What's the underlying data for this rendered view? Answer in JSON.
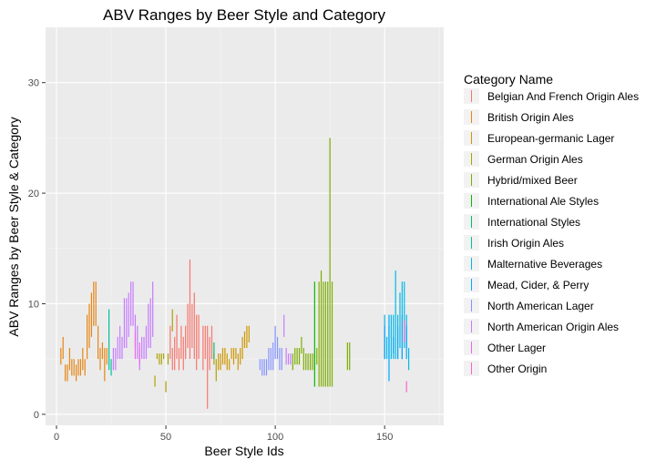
{
  "chart_data": {
    "type": "range-segments",
    "title": "ABV Ranges by Beer Style and Category",
    "xlabel": "Beer Style Ids",
    "ylabel": "ABV Ranges by Beer Style & Category",
    "xlim": [
      -5,
      177
    ],
    "ylim": [
      -1,
      35
    ],
    "xticks": [
      0,
      50,
      100,
      150
    ],
    "yticks": [
      0,
      10,
      20,
      30
    ],
    "grid": true,
    "legend_position": "right",
    "legend_title": "Category Name",
    "series": [
      {
        "name": "Belgian And French Origin Ales",
        "color": "#F8766D",
        "segments": [
          [
            52,
            5,
            8
          ],
          [
            53,
            4,
            6
          ],
          [
            54,
            4,
            7
          ],
          [
            55,
            5,
            9
          ],
          [
            56,
            4,
            6
          ],
          [
            57,
            5,
            8
          ],
          [
            58,
            4,
            7
          ],
          [
            59,
            5,
            8
          ],
          [
            60,
            6,
            10
          ],
          [
            61,
            5,
            14
          ],
          [
            62,
            6,
            10
          ],
          [
            63,
            5,
            11
          ],
          [
            64,
            4,
            9
          ],
          [
            65,
            5,
            9
          ],
          [
            67,
            4,
            8
          ],
          [
            68,
            5,
            8
          ],
          [
            69,
            0.5,
            8
          ],
          [
            70,
            4,
            7
          ],
          [
            71,
            5,
            8
          ]
        ]
      },
      {
        "name": "British Origin Ales",
        "color": "#E68613",
        "segments": [
          [
            2,
            4.5,
            6
          ],
          [
            3,
            5,
            7
          ],
          [
            4,
            3,
            4.5
          ],
          [
            5,
            3,
            4.5
          ],
          [
            6,
            4,
            6
          ],
          [
            7,
            3.5,
            5
          ],
          [
            8,
            3.5,
            5
          ],
          [
            9,
            3,
            4.5
          ],
          [
            10,
            3.5,
            5
          ],
          [
            11,
            3.5,
            5
          ],
          [
            12,
            4,
            6
          ],
          [
            13,
            3.5,
            5
          ],
          [
            14,
            5,
            9
          ],
          [
            15,
            6,
            10
          ],
          [
            16,
            7,
            11
          ],
          [
            17,
            8,
            12
          ],
          [
            18,
            8,
            12
          ],
          [
            19,
            5,
            8
          ],
          [
            20,
            4,
            6
          ],
          [
            21,
            5,
            6.5
          ],
          [
            22,
            3,
            6
          ],
          [
            23,
            4.5,
            6
          ]
        ]
      },
      {
        "name": "European-germanic Lager",
        "color": "#CD9600",
        "segments": [
          [
            74,
            4,
            5.5
          ],
          [
            75,
            4,
            5.5
          ],
          [
            76,
            4.5,
            6
          ],
          [
            77,
            4.5,
            6
          ],
          [
            78,
            4,
            5.5
          ],
          [
            79,
            4,
            5
          ],
          [
            80,
            5,
            6
          ],
          [
            81,
            4.5,
            6
          ],
          [
            82,
            5,
            6
          ],
          [
            83,
            4,
            5.5
          ],
          [
            84,
            4.5,
            6
          ],
          [
            85,
            5,
            7
          ],
          [
            86,
            6,
            7.5
          ],
          [
            87,
            6,
            8
          ],
          [
            88,
            6.5,
            8
          ]
        ]
      },
      {
        "name": "German Origin Ales",
        "color": "#ABA300",
        "segments": [
          [
            45,
            2.5,
            3.5
          ],
          [
            46,
            5,
            5.5
          ],
          [
            47,
            4.5,
            5.5
          ],
          [
            48,
            4.5,
            5.5
          ],
          [
            49,
            5,
            5.5
          ],
          [
            50,
            2,
            3
          ],
          [
            51,
            4.5,
            5.5
          ],
          [
            53,
            7.5,
            9.5
          ],
          [
            72,
            4.5,
            5.5
          ],
          [
            73,
            3,
            5
          ]
        ]
      },
      {
        "name": "Hybrid/mixed Beer",
        "color": "#7CAE00",
        "segments": [
          [
            108,
            4,
            5.5
          ],
          [
            109,
            4.5,
            6
          ],
          [
            110,
            4.5,
            6
          ],
          [
            111,
            4.5,
            6
          ],
          [
            112,
            5.5,
            7
          ],
          [
            113,
            4,
            6
          ],
          [
            114,
            4,
            5.5
          ],
          [
            115,
            4,
            5.5
          ],
          [
            116,
            4,
            5.5
          ],
          [
            117,
            4,
            5.5
          ],
          [
            118,
            4,
            5.5
          ],
          [
            119,
            4.5,
            6
          ],
          [
            120,
            2.5,
            12
          ],
          [
            121,
            2.5,
            13
          ],
          [
            122,
            2.5,
            12
          ],
          [
            123,
            2.5,
            12
          ],
          [
            124,
            2.5,
            12
          ],
          [
            125,
            2.5,
            25
          ],
          [
            126,
            2.5,
            12
          ],
          [
            133,
            4,
            6.5
          ],
          [
            134,
            4,
            6.5
          ]
        ]
      },
      {
        "name": "International Ale Styles",
        "color": "#0CB702",
        "segments": [
          [
            118,
            2.5,
            12
          ]
        ]
      },
      {
        "name": "International Styles",
        "color": "#00BE67",
        "segments": [
          [
            72,
            5,
            6.5
          ]
        ]
      },
      {
        "name": "Irish Origin Ales",
        "color": "#00C19A",
        "segments": [
          [
            24,
            4,
            9.5
          ],
          [
            25,
            3.5,
            5
          ]
        ]
      },
      {
        "name": "Malternative Beverages",
        "color": "#00B8E7",
        "segments": [
          [
            150,
            5,
            9
          ],
          [
            151,
            5,
            7
          ],
          [
            152,
            5,
            8
          ],
          [
            153,
            5,
            9
          ],
          [
            154,
            5,
            9
          ],
          [
            155,
            5,
            13
          ],
          [
            156,
            5,
            9
          ],
          [
            157,
            6,
            11
          ],
          [
            158,
            5,
            12
          ],
          [
            159,
            6,
            12
          ],
          [
            160,
            6,
            9
          ],
          [
            161,
            4,
            6
          ]
        ]
      },
      {
        "name": "Mead, Cider, & Perry",
        "color": "#00A9FF",
        "segments": [
          [
            150,
            5,
            8
          ],
          [
            152,
            3,
            9
          ],
          [
            154,
            5.5,
            7
          ],
          [
            156,
            5,
            8
          ],
          [
            158,
            5,
            9
          ],
          [
            160,
            5,
            8
          ]
        ]
      },
      {
        "name": "North American Lager",
        "color": "#8494FF",
        "segments": [
          [
            93,
            4,
            5
          ],
          [
            94,
            3.5,
            5
          ],
          [
            95,
            3.5,
            5
          ],
          [
            96,
            3.5,
            5
          ],
          [
            97,
            4,
            6
          ],
          [
            98,
            4,
            6
          ],
          [
            99,
            4,
            6.5
          ],
          [
            100,
            5,
            8
          ],
          [
            101,
            5,
            7
          ],
          [
            102,
            4,
            6
          ],
          [
            103,
            4,
            6
          ]
        ]
      },
      {
        "name": "North American Origin Ales",
        "color": "#C77CFF",
        "segments": [
          [
            26,
            4,
            6
          ],
          [
            27,
            4,
            6
          ],
          [
            28,
            5,
            7
          ],
          [
            29,
            5,
            8
          ],
          [
            30,
            5,
            7
          ],
          [
            31,
            6,
            10.5
          ],
          [
            32,
            6,
            10.5
          ],
          [
            33,
            7,
            11
          ],
          [
            34,
            8,
            12
          ],
          [
            35,
            8,
            12
          ],
          [
            36,
            6,
            9
          ],
          [
            37,
            5,
            8
          ],
          [
            38,
            4,
            6
          ],
          [
            39,
            5,
            7
          ],
          [
            40,
            5,
            7
          ],
          [
            41,
            5,
            8
          ],
          [
            42,
            6,
            10
          ],
          [
            43,
            6,
            10.5
          ],
          [
            44,
            7,
            12
          ],
          [
            104,
            7,
            9
          ],
          [
            105,
            4.5,
            6
          ],
          [
            106,
            4.5,
            5.5
          ],
          [
            107,
            4.5,
            5.5
          ]
        ]
      },
      {
        "name": "Other Lager",
        "color": "#ED68ED",
        "segments": [
          [
            36,
            5,
            7.5
          ],
          [
            38,
            4.5,
            6.5
          ]
        ]
      },
      {
        "name": "Other Origin",
        "color": "#FF61CC",
        "segments": [
          [
            159,
            6.5,
            8.5
          ],
          [
            160,
            2,
            3
          ]
        ]
      }
    ]
  }
}
